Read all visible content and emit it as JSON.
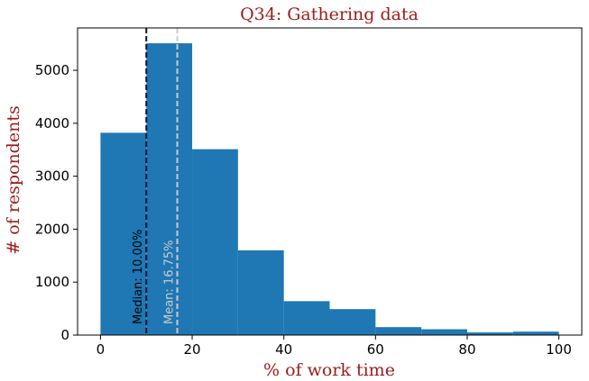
{
  "chart_data": {
    "type": "bar",
    "title": "Q34: Gathering data",
    "xlabel": "% of work time",
    "ylabel": "# of respondents",
    "bins": [
      {
        "start": 0,
        "end": 10,
        "value": 3820
      },
      {
        "start": 10,
        "end": 20,
        "value": 5510
      },
      {
        "start": 20,
        "end": 30,
        "value": 3510
      },
      {
        "start": 30,
        "end": 40,
        "value": 1600
      },
      {
        "start": 40,
        "end": 50,
        "value": 640
      },
      {
        "start": 50,
        "end": 60,
        "value": 490
      },
      {
        "start": 60,
        "end": 70,
        "value": 150
      },
      {
        "start": 70,
        "end": 80,
        "value": 110
      },
      {
        "start": 80,
        "end": 90,
        "value": 50
      },
      {
        "start": 90,
        "end": 100,
        "value": 65
      }
    ],
    "xlim": [
      -5,
      105
    ],
    "ylim": [
      0,
      5800
    ],
    "xticks": [
      0,
      20,
      40,
      60,
      80,
      100
    ],
    "yticks": [
      0,
      1000,
      2000,
      3000,
      4000,
      5000
    ],
    "grid": false,
    "bar_color": "#1f77b4",
    "annotations": [
      {
        "name": "median",
        "x": 10,
        "label": "Median: 10.00%",
        "color": "#000000",
        "line_color": "#111133"
      },
      {
        "name": "mean",
        "x": 16.75,
        "label": "Mean: 16.75%",
        "color": "#cccccc",
        "line_color": "#cccccc"
      }
    ]
  }
}
